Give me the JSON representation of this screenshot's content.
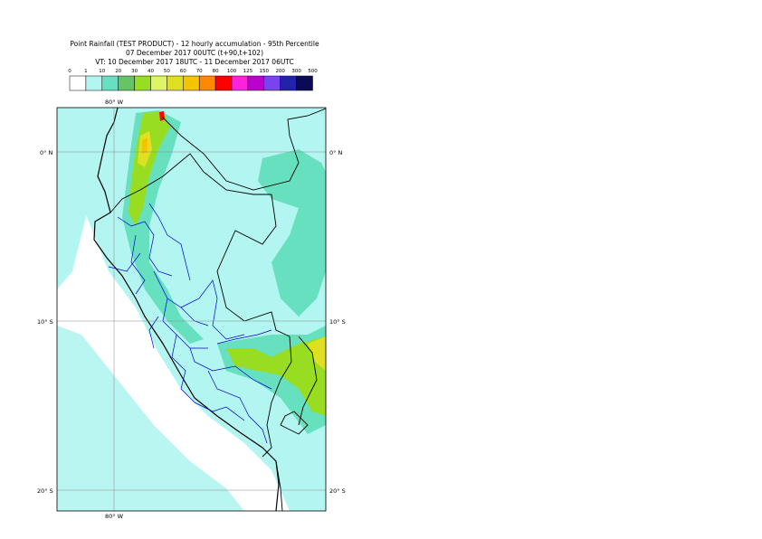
{
  "title": {
    "line1": "Point Rainfall (TEST PRODUCT) - 12 hourly accumulation - 95th Percentile",
    "line2": "07 December 2017 00UTC (t+90,t+102)",
    "line3": "VT: 10 December 2017 18UTC - 11 December 2017 06UTC"
  },
  "legend": {
    "thresholds": [
      "0",
      "1",
      "10",
      "20",
      "30",
      "40",
      "50",
      "60",
      "70",
      "80",
      "100",
      "125",
      "150",
      "200",
      "300",
      "500"
    ],
    "colors": [
      "#ffffff",
      "#b3f5f0",
      "#66e0bf",
      "#66c466",
      "#99dd22",
      "#ddf566",
      "#e0e022",
      "#f5c400",
      "#ff8800",
      "#ff0000",
      "#ff22dd",
      "#bb00cc",
      "#7744ee",
      "#2222aa",
      "#0a0a55"
    ]
  },
  "map": {
    "lon_label_top": "80° W",
    "lon_label_bottom": "80° W",
    "lat_labels_left": [
      "0° N",
      "10° S",
      "20° S"
    ],
    "lat_labels_right": [
      "0° N",
      "10° S",
      "20° S"
    ]
  }
}
